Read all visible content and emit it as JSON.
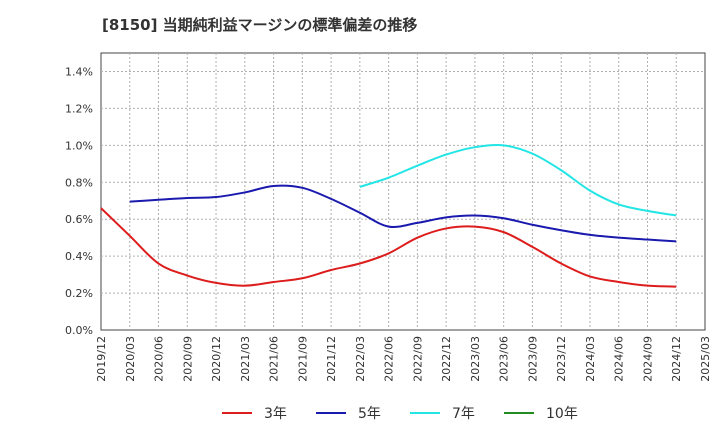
{
  "chart_data": {
    "type": "line",
    "title": "[8150]  当期純利益マージンの標準偏差の推移",
    "xlabel": "",
    "ylabel": "",
    "x_ticks": [
      "2019/12",
      "2020/03",
      "2020/06",
      "2020/09",
      "2020/12",
      "2021/03",
      "2021/06",
      "2021/09",
      "2021/12",
      "2022/03",
      "2022/06",
      "2022/09",
      "2022/12",
      "2023/03",
      "2023/06",
      "2023/09",
      "2023/12",
      "2024/03",
      "2024/06",
      "2024/09",
      "2024/12",
      "2025/03"
    ],
    "y_ticks": [
      "0.0%",
      "0.2%",
      "0.4%",
      "0.6%",
      "0.8%",
      "1.0%",
      "1.2%",
      "1.4%"
    ],
    "ylim": [
      0,
      1.5
    ],
    "grid": true,
    "legend_position": "bottom",
    "series": [
      {
        "name": "3年",
        "color": "#dd1c1c",
        "x": [
          "2019/12",
          "2020/03",
          "2020/06",
          "2020/09",
          "2020/12",
          "2021/03",
          "2021/06",
          "2021/09",
          "2021/12",
          "2022/03",
          "2022/06",
          "2022/09",
          "2022/12",
          "2023/03",
          "2023/06",
          "2023/09",
          "2023/12",
          "2024/03",
          "2024/06",
          "2024/09",
          "2024/12"
        ],
        "values": [
          0.66,
          0.51,
          0.36,
          0.295,
          0.255,
          0.24,
          0.26,
          0.28,
          0.325,
          0.36,
          0.415,
          0.5,
          0.55,
          0.56,
          0.53,
          0.45,
          0.36,
          0.29,
          0.26,
          0.24,
          0.235
        ]
      },
      {
        "name": "5年",
        "color": "#1a1aaf",
        "x": [
          "2020/03",
          "2020/06",
          "2020/09",
          "2020/12",
          "2021/03",
          "2021/06",
          "2021/09",
          "2021/12",
          "2022/03",
          "2022/06",
          "2022/09",
          "2022/12",
          "2023/03",
          "2023/06",
          "2023/09",
          "2023/12",
          "2024/03",
          "2024/06",
          "2024/09",
          "2024/12"
        ],
        "values": [
          0.695,
          0.705,
          0.715,
          0.72,
          0.745,
          0.78,
          0.77,
          0.71,
          0.635,
          0.56,
          0.58,
          0.61,
          0.62,
          0.605,
          0.57,
          0.54,
          0.515,
          0.5,
          0.49,
          0.48
        ]
      },
      {
        "name": "7年",
        "color": "#22e5e5",
        "x": [
          "2022/03",
          "2022/06",
          "2022/09",
          "2022/12",
          "2023/03",
          "2023/06",
          "2023/09",
          "2023/12",
          "2024/03",
          "2024/06",
          "2024/09",
          "2024/12"
        ],
        "values": [
          0.775,
          0.825,
          0.89,
          0.95,
          0.99,
          1.0,
          0.955,
          0.865,
          0.755,
          0.68,
          0.645,
          0.62
        ]
      },
      {
        "name": "10年",
        "color": "#228b22",
        "x": [],
        "values": []
      }
    ]
  }
}
